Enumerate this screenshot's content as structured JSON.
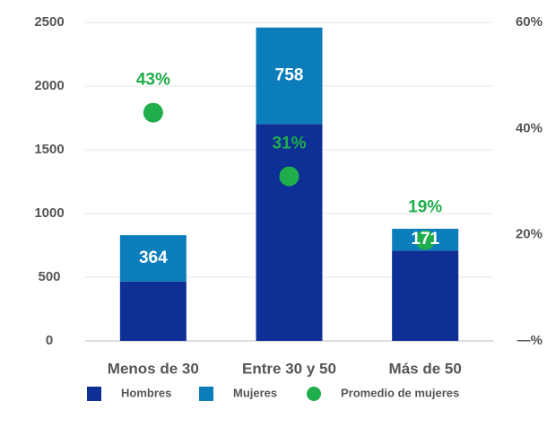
{
  "chart_data": {
    "type": "bar",
    "categories": [
      "Menos de 30",
      "Entre 30 y 50",
      "Más de 50"
    ],
    "series": [
      {
        "name": "Hombres",
        "color": "#0d2f96",
        "values": [
          466,
          1702,
          709
        ]
      },
      {
        "name": "Mujeres",
        "color": "#0b7dbb",
        "values": [
          364,
          758,
          171
        ]
      },
      {
        "name": "Promedio de mujeres",
        "color": "#1fae4b",
        "axis": "y2",
        "values": [
          43,
          31,
          19
        ],
        "value_labels": [
          "43%",
          "31%",
          "19%"
        ]
      }
    ],
    "ylim": [
      0,
      2500
    ],
    "yticks": [
      0,
      500,
      1000,
      1500,
      2000,
      2500
    ],
    "y2lim": [
      0,
      60
    ],
    "y2ticks": [
      {
        "value": 0,
        "label": "—%"
      },
      {
        "value": 20,
        "label": "20%"
      },
      {
        "value": 40,
        "label": "40%"
      },
      {
        "value": 60,
        "label": "60%"
      }
    ],
    "grid": true,
    "legend": "bottom"
  }
}
